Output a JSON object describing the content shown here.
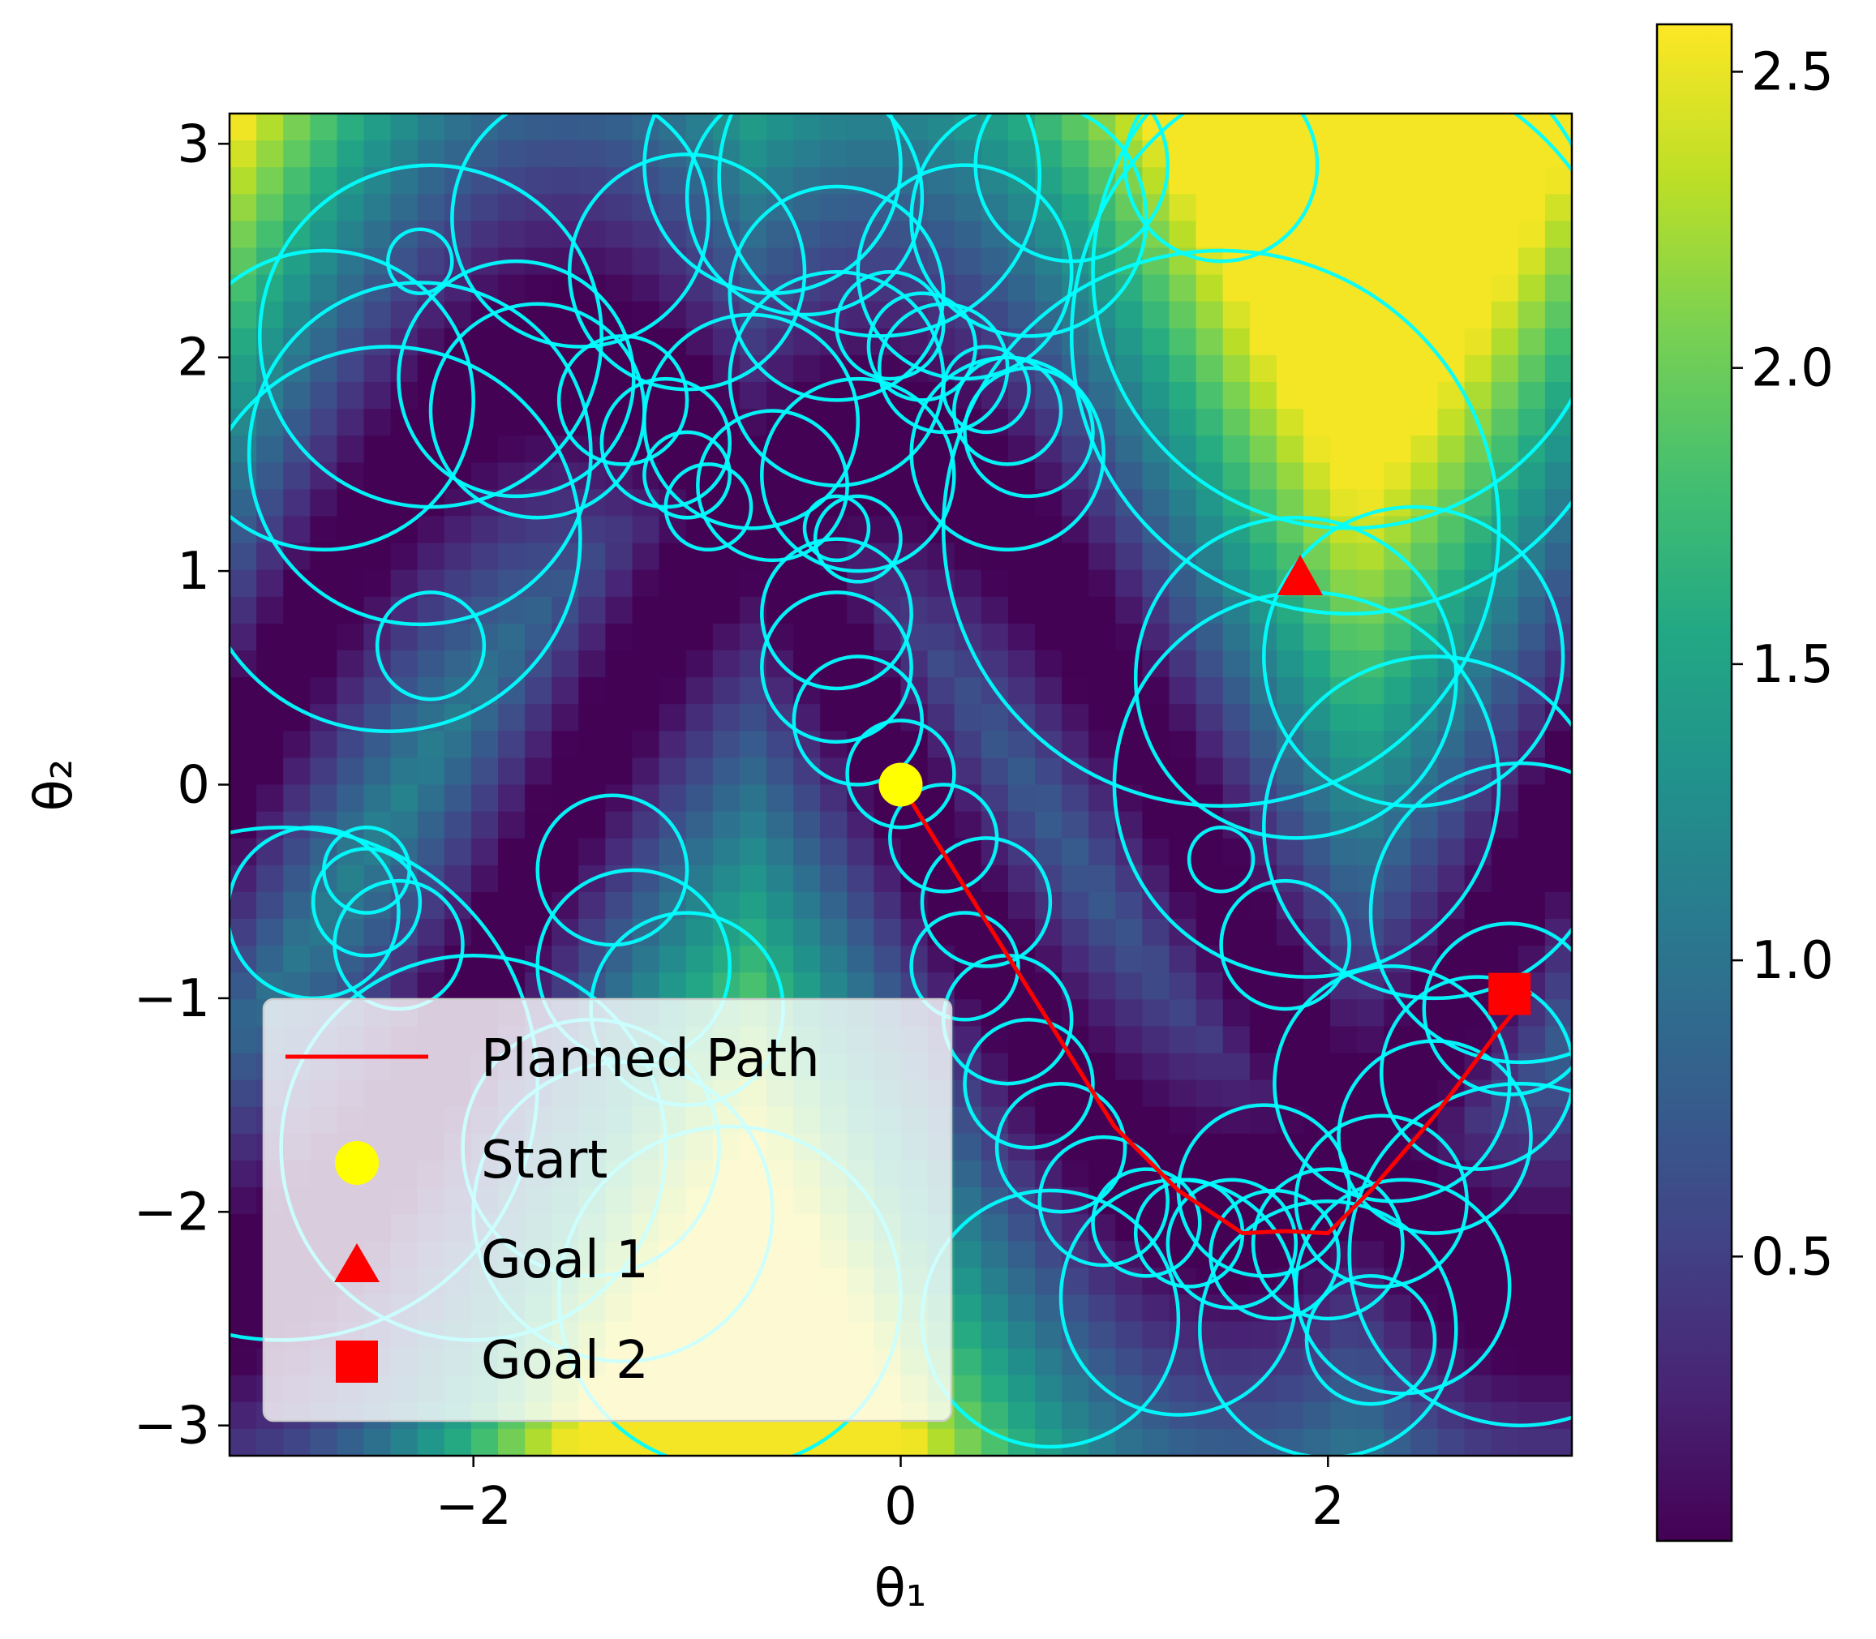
{
  "chart_data": {
    "type": "heatmap",
    "xlabel": "θ₁",
    "ylabel": "θ₂",
    "xlim": [
      -3.1416,
      3.1416
    ],
    "ylim": [
      -3.1416,
      3.1416
    ],
    "xticks": [
      {
        "value": -2,
        "label": "−2"
      },
      {
        "value": 0,
        "label": "0"
      },
      {
        "value": 2,
        "label": "2"
      }
    ],
    "yticks": [
      {
        "value": 3,
        "label": "3"
      },
      {
        "value": 2,
        "label": "2"
      },
      {
        "value": 1,
        "label": "1"
      },
      {
        "value": 0,
        "label": "0"
      },
      {
        "value": -1,
        "label": "−1"
      },
      {
        "value": -2,
        "label": "−2"
      },
      {
        "value": -3,
        "label": "−3"
      }
    ],
    "colorbar": {
      "colormap": "viridis",
      "range": [
        0.02,
        2.58
      ],
      "ticks": [
        {
          "value": 0.5,
          "label": "0.5"
        },
        {
          "value": 1.0,
          "label": "1.0"
        },
        {
          "value": 1.5,
          "label": "1.5"
        },
        {
          "value": 2.0,
          "label": "2.0"
        },
        {
          "value": 2.5,
          "label": "2.5"
        }
      ]
    },
    "circle_color": "#00FFFF",
    "circles": [
      [
        -2.2,
        2.1,
        0.8
      ],
      [
        -1.5,
        2.65,
        0.6
      ],
      [
        -1.0,
        2.4,
        0.55
      ],
      [
        -0.6,
        2.9,
        0.6
      ],
      [
        -0.45,
        2.75,
        0.55
      ],
      [
        -0.1,
        2.85,
        0.75
      ],
      [
        -0.3,
        2.3,
        0.5
      ],
      [
        0.3,
        2.4,
        0.5
      ],
      [
        0.8,
        2.9,
        0.45
      ],
      [
        1.5,
        2.9,
        0.45
      ],
      [
        0.6,
        2.65,
        0.55
      ],
      [
        2.1,
        2.4,
        1.2
      ],
      [
        2.1,
        2.1,
        1.3
      ],
      [
        1.5,
        1.2,
        1.3
      ],
      [
        -2.7,
        1.8,
        0.7
      ],
      [
        -2.4,
        1.15,
        0.9
      ],
      [
        -2.25,
        1.55,
        0.8
      ],
      [
        -1.8,
        1.9,
        0.55
      ],
      [
        -1.7,
        1.75,
        0.5
      ],
      [
        -1.3,
        1.8,
        0.3
      ],
      [
        -1.1,
        1.6,
        0.3
      ],
      [
        -1.0,
        1.45,
        0.2
      ],
      [
        -0.9,
        1.3,
        0.2
      ],
      [
        -0.6,
        1.4,
        0.35
      ],
      [
        -0.7,
        1.7,
        0.5
      ],
      [
        -0.3,
        1.9,
        0.5
      ],
      [
        -0.05,
        2.15,
        0.25
      ],
      [
        0.1,
        2.05,
        0.25
      ],
      [
        0.2,
        1.95,
        0.3
      ],
      [
        0.4,
        1.85,
        0.2
      ],
      [
        0.5,
        1.75,
        0.25
      ],
      [
        0.6,
        1.65,
        0.3
      ],
      [
        0.5,
        1.55,
        0.45
      ],
      [
        -0.2,
        1.45,
        0.45
      ],
      [
        -0.3,
        1.2,
        0.15
      ],
      [
        -0.2,
        1.15,
        0.2
      ],
      [
        -0.3,
        0.8,
        0.35
      ],
      [
        -0.3,
        0.55,
        0.35
      ],
      [
        -0.2,
        0.3,
        0.3
      ],
      [
        0.0,
        0.05,
        0.25
      ],
      [
        0.2,
        -0.25,
        0.25
      ],
      [
        0.4,
        -0.55,
        0.3
      ],
      [
        0.3,
        -0.85,
        0.25
      ],
      [
        0.5,
        -1.1,
        0.3
      ],
      [
        0.6,
        -1.4,
        0.3
      ],
      [
        0.75,
        -1.7,
        0.3
      ],
      [
        0.95,
        -1.95,
        0.3
      ],
      [
        1.15,
        -2.05,
        0.25
      ],
      [
        1.35,
        -2.1,
        0.25
      ],
      [
        1.55,
        -2.15,
        0.3
      ],
      [
        1.75,
        -2.2,
        0.3
      ],
      [
        2.0,
        -2.15,
        0.35
      ],
      [
        2.25,
        -1.95,
        0.4
      ],
      [
        2.5,
        -1.65,
        0.45
      ],
      [
        2.7,
        -1.35,
        0.45
      ],
      [
        2.85,
        -1.05,
        0.4
      ],
      [
        2.9,
        -0.6,
        0.7
      ],
      [
        2.5,
        -0.2,
        0.8
      ],
      [
        1.85,
        0.5,
        0.75
      ],
      [
        1.9,
        0.0,
        0.9
      ],
      [
        2.4,
        0.6,
        0.7
      ],
      [
        1.5,
        -0.35,
        0.15
      ],
      [
        1.8,
        -0.75,
        0.3
      ],
      [
        2.3,
        -1.4,
        0.55
      ],
      [
        2.0,
        -2.55,
        0.6
      ],
      [
        1.3,
        -2.4,
        0.55
      ],
      [
        0.7,
        -2.5,
        0.6
      ],
      [
        -0.8,
        -2.4,
        0.8
      ],
      [
        -1.3,
        -2.0,
        0.7
      ],
      [
        -1.45,
        -1.7,
        0.6
      ],
      [
        -2.0,
        -1.7,
        0.9
      ],
      [
        -2.5,
        -0.4,
        0.2
      ],
      [
        -2.5,
        -0.55,
        0.25
      ],
      [
        -2.75,
        -0.6,
        0.4
      ],
      [
        -2.35,
        -0.75,
        0.3
      ],
      [
        -2.25,
        2.45,
        0.15
      ],
      [
        -1.35,
        -0.4,
        0.35
      ],
      [
        -1.25,
        -0.85,
        0.45
      ],
      [
        -1.0,
        -1.05,
        0.45
      ],
      [
        -2.2,
        0.65,
        0.25
      ],
      [
        -2.9,
        -1.4,
        1.2
      ],
      [
        2.9,
        -2.2,
        0.8
      ],
      [
        2.35,
        -2.35,
        0.5
      ],
      [
        1.7,
        -1.9,
        0.4
      ],
      [
        2.2,
        -2.6,
        0.3
      ]
    ],
    "path": {
      "name": "Planned Path",
      "color": "#FF0000",
      "points": [
        [
          0,
          0
        ],
        [
          0.5,
          -0.8
        ],
        [
          1.0,
          -1.6
        ],
        [
          1.3,
          -1.9
        ],
        [
          1.6,
          -2.1
        ],
        [
          1.8,
          -2.09
        ],
        [
          2.0,
          -2.1
        ],
        [
          2.2,
          -1.9
        ],
        [
          2.5,
          -1.55
        ],
        [
          2.8,
          -1.15
        ],
        [
          2.95,
          -0.97
        ]
      ]
    },
    "markers": [
      {
        "name": "Start",
        "shape": "circle",
        "color": "#FFFF00",
        "x": 0.0,
        "y": 0.0
      },
      {
        "name": "Goal 1",
        "shape": "triangle",
        "color": "#FF0000",
        "x": 1.87,
        "y": 0.97
      },
      {
        "name": "Goal 2",
        "shape": "square",
        "color": "#FF0000",
        "x": 2.85,
        "y": -0.98
      }
    ],
    "legend": {
      "placement": "lower-left",
      "entries": [
        "Planned Path",
        "Start",
        "Goal 1",
        "Goal 2"
      ]
    }
  }
}
